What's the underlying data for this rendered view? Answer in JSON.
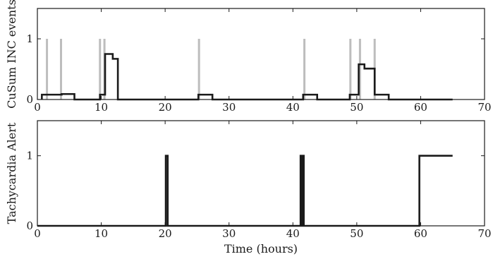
{
  "chart_data": [
    {
      "type": "line",
      "title": "",
      "xlabel": "",
      "ylabel": "CuSum INC events",
      "xlim": [
        0,
        70
      ],
      "ylim": [
        0,
        1.5
      ],
      "xticks": [
        0,
        10,
        20,
        30,
        40,
        50,
        60,
        70
      ],
      "yticks": [
        0,
        1
      ],
      "grid": false,
      "legend": "none",
      "colors": {
        "line": "#1a1a1a",
        "events": "#bdbdbd"
      },
      "event_markers": {
        "x": [
          1.5,
          3.7,
          9.8,
          10.5,
          25.3,
          41.8,
          49.0,
          50.5,
          52.8
        ],
        "height": 1.0
      },
      "series": [
        {
          "kind": "step",
          "points": [
            [
              0.7,
              0
            ],
            [
              0.7,
              0.08
            ],
            [
              3.8,
              0.08
            ],
            [
              3.8,
              0.09
            ],
            [
              5.8,
              0.09
            ],
            [
              5.8,
              0
            ],
            [
              9.8,
              0
            ],
            [
              9.8,
              0.08
            ],
            [
              10.6,
              0.08
            ],
            [
              10.6,
              0.75
            ],
            [
              11.8,
              0.75
            ],
            [
              11.8,
              0.67
            ],
            [
              12.6,
              0.67
            ],
            [
              12.6,
              0
            ],
            [
              25.2,
              0
            ],
            [
              25.2,
              0.08
            ],
            [
              27.4,
              0.08
            ],
            [
              27.4,
              0
            ],
            [
              41.6,
              0
            ],
            [
              41.6,
              0.08
            ],
            [
              43.8,
              0.08
            ],
            [
              43.8,
              0
            ],
            [
              48.9,
              0
            ],
            [
              48.9,
              0.08
            ],
            [
              50.3,
              0.08
            ],
            [
              50.3,
              0.58
            ],
            [
              51.2,
              0.58
            ],
            [
              51.2,
              0.51
            ],
            [
              52.8,
              0.51
            ],
            [
              52.8,
              0.08
            ],
            [
              55.0,
              0.08
            ],
            [
              55.0,
              0
            ],
            [
              65.0,
              0
            ]
          ]
        }
      ]
    },
    {
      "type": "line",
      "title": "",
      "xlabel": "Time (hours)",
      "ylabel": "Tachycardia Alert",
      "xlim": [
        0,
        70
      ],
      "ylim": [
        0,
        1.5
      ],
      "xticks": [
        0,
        10,
        20,
        30,
        40,
        50,
        60,
        70
      ],
      "yticks": [
        0,
        1
      ],
      "grid": false,
      "legend": "none",
      "colors": {
        "line": "#1a1a1a"
      },
      "series": [
        {
          "kind": "step",
          "points": [
            [
              0,
              0
            ],
            [
              20.1,
              0
            ],
            [
              20.1,
              1
            ],
            [
              20.4,
              1
            ],
            [
              20.4,
              0
            ],
            [
              41.2,
              0
            ],
            [
              41.2,
              1
            ],
            [
              41.4,
              1
            ],
            [
              41.4,
              0
            ],
            [
              41.5,
              0
            ],
            [
              41.5,
              1
            ],
            [
              41.7,
              1
            ],
            [
              41.7,
              0
            ],
            [
              59.8,
              0
            ],
            [
              59.8,
              1
            ],
            [
              65.0,
              1
            ]
          ]
        }
      ]
    }
  ]
}
